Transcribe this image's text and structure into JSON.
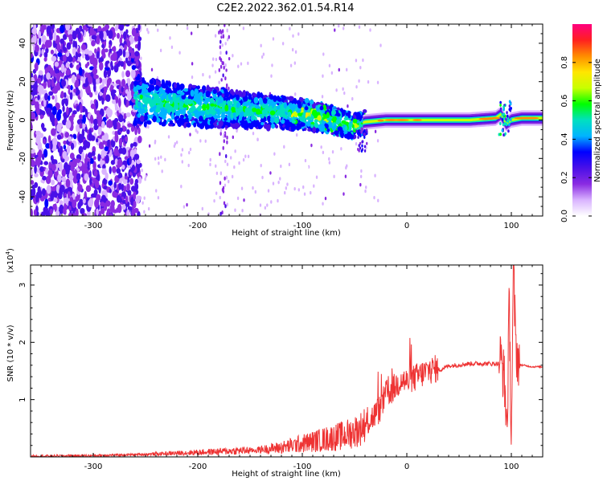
{
  "title": "C2E2.2022.362.01.54.R14",
  "chart_data": [
    {
      "type": "heatmap",
      "xlabel": "Height of straight line (km)",
      "ylabel": "Frequency (Hz)",
      "xlim": [
        -360,
        130
      ],
      "ylim": [
        -50,
        50
      ],
      "xticks": [
        -300,
        -200,
        -100,
        0,
        100
      ],
      "yticks": [
        -40,
        -20,
        0,
        20,
        40
      ],
      "ridge": {
        "x": [
          -260,
          -200,
          -150,
          -100,
          -80,
          -60,
          -50,
          -40,
          -20,
          0,
          20,
          60,
          85,
          90,
          95,
          100,
          110,
          130
        ],
        "y": [
          10,
          7,
          5,
          3,
          1,
          -2,
          -3,
          -1,
          0,
          0,
          0,
          0,
          1,
          3,
          -2,
          0,
          1,
          1
        ]
      },
      "colorbar": {
        "label": "Normalized spectral amplitude",
        "ticks": [
          0.0,
          0.2,
          0.4,
          0.6,
          0.8
        ],
        "range": [
          0,
          1
        ],
        "colors": [
          "#ffffff",
          "#d9b3ff",
          "#8a2be2",
          "#4a10e8",
          "#0000ff",
          "#00b4ff",
          "#00e0c0",
          "#00ff00",
          "#c8ff00",
          "#ffe600",
          "#ff8c00",
          "#ff2020",
          "#ff007f"
        ]
      }
    },
    {
      "type": "line",
      "xlabel": "Height of straight line (km)",
      "ylabel": "SNR (10 * v/v)",
      "yscale_label": "(x10",
      "yscale_exp": "4",
      "xlim": [
        -360,
        130
      ],
      "ylim": [
        0,
        3.35
      ],
      "xticks": [
        -300,
        -200,
        -100,
        0,
        100
      ],
      "yticks": [
        1,
        2,
        3
      ],
      "color": "#ee3333",
      "series": [
        {
          "x": [
            -360,
            -300,
            -250,
            -200,
            -150,
            -120,
            -100,
            -80,
            -60,
            -45,
            -35,
            -25,
            -20,
            -15,
            -10,
            -5,
            0,
            10,
            20,
            30,
            40,
            60,
            80,
            90,
            93,
            96,
            98,
            100,
            102,
            104,
            106,
            110,
            120,
            130
          ],
          "y": [
            0.01,
            0.02,
            0.04,
            0.07,
            0.1,
            0.14,
            0.2,
            0.26,
            0.32,
            0.42,
            0.6,
            0.8,
            1.05,
            1.1,
            1.2,
            1.3,
            1.25,
            1.35,
            1.45,
            1.5,
            1.58,
            1.62,
            1.62,
            1.62,
            1.3,
            0.4,
            2.6,
            0.2,
            3.2,
            1.9,
            1.62,
            1.6,
            1.57,
            1.57
          ]
        }
      ]
    }
  ]
}
